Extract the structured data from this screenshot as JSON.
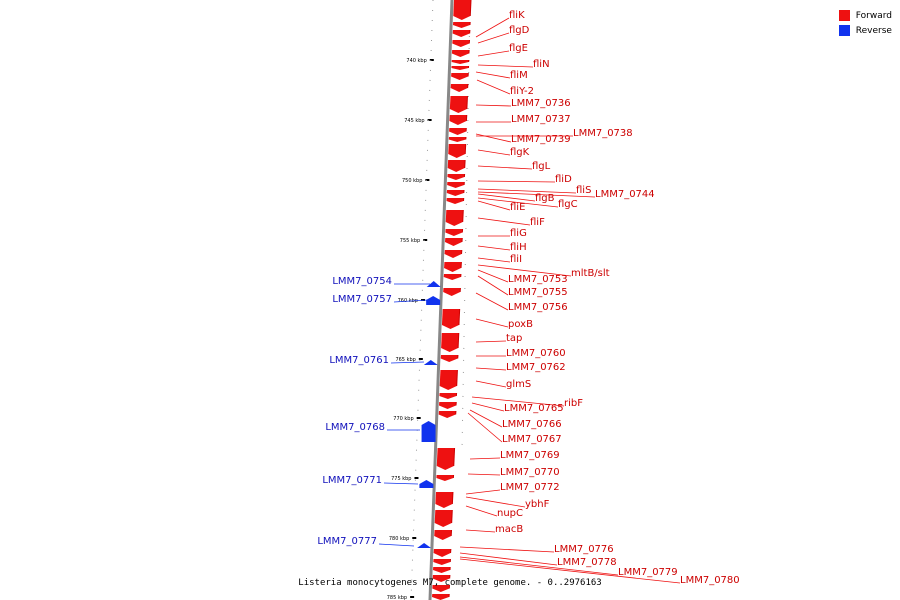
{
  "colors": {
    "forward": "#ee1111",
    "reverse": "#1133ee",
    "axis": "#777777"
  },
  "legend": [
    {
      "label": "Forward",
      "color": "#ee1111"
    },
    {
      "label": "Reverse",
      "color": "#1133ee"
    }
  ],
  "caption": "Listeria monocytogenes M7, complete genome. - 0..2976163",
  "ticks": [
    "740 kbp",
    "745 kbp",
    "750 kbp",
    "755 kbp",
    "760 kbp",
    "765 kbp",
    "770 kbp",
    "775 kbp",
    "780 kbp",
    "785 kbp"
  ],
  "forward_genes": [
    "fliK",
    "flgD",
    "flgE",
    "fliN",
    "fliM",
    "fliY-2",
    "LMM7_0736",
    "LMM7_0737",
    "LMM7_0739",
    "LMM7_0738",
    "flgK",
    "flgL",
    "fliD",
    "fliS",
    "LMM7_0744",
    "flgB",
    "flgC",
    "fliE",
    "fliF",
    "fliG",
    "fliH",
    "fliI",
    "mltB/slt",
    "LMM7_0753",
    "LMM7_0755",
    "LMM7_0756",
    "poxB",
    "tap",
    "LMM7_0760",
    "LMM7_0762",
    "glmS",
    "ribF",
    "LMM7_0765",
    "LMM7_0766",
    "LMM7_0767",
    "LMM7_0769",
    "LMM7_0770",
    "LMM7_0772",
    "ybhF",
    "nupC",
    "macB",
    "LMM7_0776",
    "LMM7_0778",
    "LMM7_0779",
    "LMM7_0780"
  ],
  "reverse_genes": [
    "LMM7_0754",
    "LMM7_0757",
    "LMM7_0761",
    "LMM7_0768",
    "LMM7_0771",
    "LMM7_0777"
  ]
}
